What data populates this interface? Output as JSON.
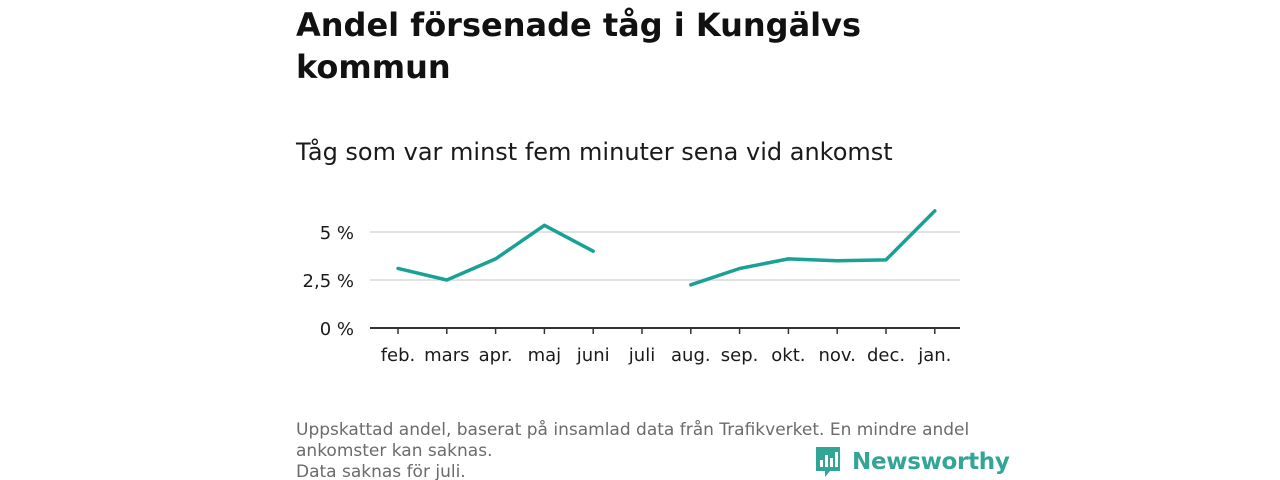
{
  "title": "Andel försenade tåg i Kungälvs kommun",
  "subtitle": "Tåg som var minst fem minuter sena vid ankomst",
  "footnote": {
    "line1": "Uppskattad andel, baserat på insamlad data från Trafikverket. En mindre andel ankomster kan saknas.",
    "line2": "Data saknas för juli."
  },
  "brand": {
    "name": "Newsworthy",
    "logo_icon": "newsworthy-logo-icon",
    "color": "#33a597"
  },
  "colors": {
    "line": "#19a196",
    "grid": "#d9d9d9",
    "axis": "#333333",
    "text": "#1a1a1a"
  },
  "chart_data": {
    "type": "line",
    "title": "Andel försenade tåg i Kungälvs kommun",
    "subtitle": "Tåg som var minst fem minuter sena vid ankomst",
    "xlabel": "",
    "ylabel": "",
    "categories": [
      "feb.",
      "mars",
      "apr.",
      "maj",
      "juni",
      "juli",
      "aug.",
      "sep.",
      "okt.",
      "nov.",
      "dec.",
      "jan."
    ],
    "series": [
      {
        "values": [
          3.1,
          2.5,
          3.6,
          5.35,
          4.0,
          null,
          2.25,
          3.1,
          3.6,
          3.5,
          3.55,
          6.1
        ]
      }
    ],
    "yticks": [
      0,
      2.5,
      5
    ],
    "ytick_labels": [
      "0 %",
      "2,5 %",
      "5 %"
    ],
    "ylim": [
      0,
      6.3
    ],
    "grid": true,
    "legend": "none"
  }
}
